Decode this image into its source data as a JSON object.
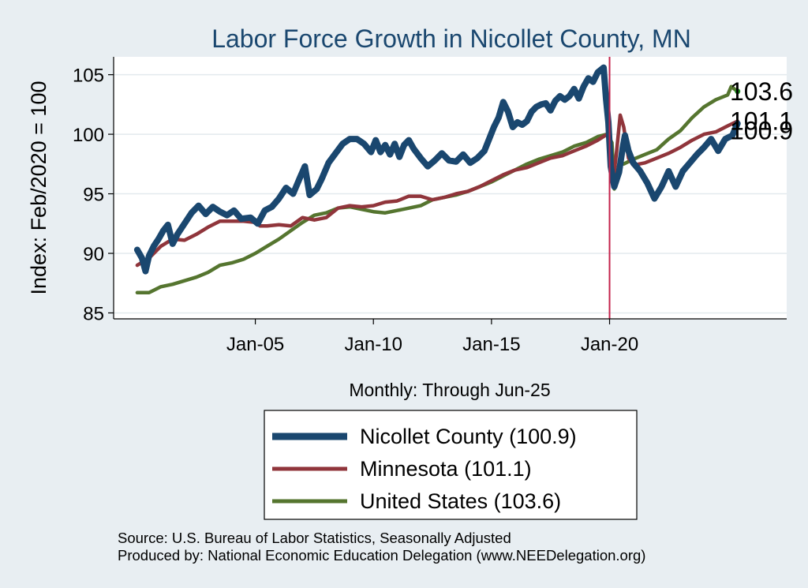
{
  "chart_data": {
    "type": "line",
    "title": "Labor Force Growth in Nicollet  County, MN",
    "xlabel": "Monthly: Through Jun-25",
    "ylabel": "Index: Feb/2020 = 100",
    "ylim": [
      84.5,
      106.5
    ],
    "xlim": [
      1999.0,
      2027.5
    ],
    "y_ticks": [
      85,
      90,
      95,
      100,
      105
    ],
    "x_ticks": [
      {
        "v": 2005.0,
        "label": "Jan-05"
      },
      {
        "v": 2010.0,
        "label": "Jan-10"
      },
      {
        "v": 2015.0,
        "label": "Jan-15"
      },
      {
        "v": 2020.0,
        "label": "Jan-20"
      }
    ],
    "vline": 2020.0,
    "grid": true,
    "legend_position": "bottom",
    "series": [
      {
        "name": "Nicollet  County",
        "legend": "Nicollet  County (100.9)",
        "end_value": "100.9",
        "color": "#1a476f",
        "width": 8,
        "points": [
          [
            2000.0,
            90.3
          ],
          [
            2000.2,
            89.6
          ],
          [
            2000.35,
            88.5
          ],
          [
            2000.5,
            89.8
          ],
          [
            2000.7,
            90.6
          ],
          [
            2000.9,
            91.2
          ],
          [
            2001.1,
            91.9
          ],
          [
            2001.3,
            92.4
          ],
          [
            2001.5,
            90.8
          ],
          [
            2001.7,
            91.6
          ],
          [
            2002.0,
            92.5
          ],
          [
            2002.3,
            93.4
          ],
          [
            2002.6,
            94.0
          ],
          [
            2002.9,
            93.3
          ],
          [
            2003.2,
            93.9
          ],
          [
            2003.5,
            93.5
          ],
          [
            2003.8,
            93.2
          ],
          [
            2004.1,
            93.6
          ],
          [
            2004.4,
            92.9
          ],
          [
            2004.8,
            93.0
          ],
          [
            2005.1,
            92.5
          ],
          [
            2005.4,
            93.6
          ],
          [
            2005.7,
            93.9
          ],
          [
            2006.0,
            94.6
          ],
          [
            2006.3,
            95.5
          ],
          [
            2006.6,
            95.0
          ],
          [
            2006.9,
            96.4
          ],
          [
            2007.1,
            97.3
          ],
          [
            2007.3,
            94.9
          ],
          [
            2007.6,
            95.4
          ],
          [
            2007.8,
            96.2
          ],
          [
            2008.1,
            97.6
          ],
          [
            2008.4,
            98.4
          ],
          [
            2008.7,
            99.2
          ],
          [
            2009.0,
            99.6
          ],
          [
            2009.3,
            99.6
          ],
          [
            2009.6,
            99.2
          ],
          [
            2009.9,
            98.5
          ],
          [
            2010.1,
            99.5
          ],
          [
            2010.3,
            98.5
          ],
          [
            2010.5,
            99.1
          ],
          [
            2010.7,
            98.3
          ],
          [
            2010.9,
            99.2
          ],
          [
            2011.1,
            98.1
          ],
          [
            2011.3,
            99.1
          ],
          [
            2011.5,
            99.5
          ],
          [
            2011.7,
            98.8
          ],
          [
            2012.0,
            98.0
          ],
          [
            2012.3,
            97.3
          ],
          [
            2012.6,
            97.8
          ],
          [
            2012.9,
            98.4
          ],
          [
            2013.2,
            97.8
          ],
          [
            2013.5,
            97.7
          ],
          [
            2013.8,
            98.3
          ],
          [
            2014.1,
            97.6
          ],
          [
            2014.4,
            98.0
          ],
          [
            2014.7,
            98.6
          ],
          [
            2014.9,
            99.6
          ],
          [
            2015.1,
            100.6
          ],
          [
            2015.3,
            101.4
          ],
          [
            2015.5,
            102.7
          ],
          [
            2015.7,
            101.9
          ],
          [
            2015.9,
            100.6
          ],
          [
            2016.1,
            101.0
          ],
          [
            2016.3,
            100.8
          ],
          [
            2016.5,
            101.1
          ],
          [
            2016.7,
            101.9
          ],
          [
            2016.9,
            102.3
          ],
          [
            2017.1,
            102.5
          ],
          [
            2017.3,
            102.6
          ],
          [
            2017.5,
            102.0
          ],
          [
            2017.7,
            102.8
          ],
          [
            2017.9,
            103.2
          ],
          [
            2018.1,
            102.9
          ],
          [
            2018.3,
            103.2
          ],
          [
            2018.5,
            103.8
          ],
          [
            2018.7,
            103.0
          ],
          [
            2018.9,
            104.0
          ],
          [
            2019.1,
            104.7
          ],
          [
            2019.3,
            104.4
          ],
          [
            2019.5,
            105.2
          ],
          [
            2019.75,
            105.6
          ],
          [
            2019.85,
            103.0
          ],
          [
            2019.95,
            101.0
          ],
          [
            2020.05,
            97.3
          ],
          [
            2020.2,
            95.6
          ],
          [
            2020.4,
            96.8
          ],
          [
            2020.55,
            98.8
          ],
          [
            2020.65,
            99.9
          ],
          [
            2020.8,
            98.6
          ],
          [
            2021.0,
            97.6
          ],
          [
            2021.3,
            96.9
          ],
          [
            2021.6,
            95.9
          ],
          [
            2021.9,
            94.6
          ],
          [
            2022.2,
            95.6
          ],
          [
            2022.5,
            96.9
          ],
          [
            2022.8,
            95.6
          ],
          [
            2023.1,
            96.9
          ],
          [
            2023.4,
            97.6
          ],
          [
            2023.7,
            98.3
          ],
          [
            2024.0,
            98.9
          ],
          [
            2024.3,
            99.6
          ],
          [
            2024.6,
            98.6
          ],
          [
            2024.9,
            99.6
          ],
          [
            2025.2,
            99.9
          ],
          [
            2025.42,
            100.9
          ]
        ]
      },
      {
        "name": "Minnesota",
        "legend": "Minnesota (101.1)",
        "end_value": "101.1",
        "color": "#90353b",
        "width": 4.5,
        "points": [
          [
            2000.0,
            89.0
          ],
          [
            2000.5,
            89.6
          ],
          [
            2001.0,
            90.6
          ],
          [
            2001.5,
            91.2
          ],
          [
            2002.0,
            91.1
          ],
          [
            2002.5,
            91.6
          ],
          [
            2003.0,
            92.2
          ],
          [
            2003.5,
            92.7
          ],
          [
            2004.0,
            92.7
          ],
          [
            2004.5,
            92.7
          ],
          [
            2005.0,
            92.6
          ],
          [
            2005.2,
            92.3
          ],
          [
            2005.5,
            92.3
          ],
          [
            2006.0,
            92.4
          ],
          [
            2006.5,
            92.3
          ],
          [
            2007.0,
            93.0
          ],
          [
            2007.5,
            92.8
          ],
          [
            2008.0,
            93.0
          ],
          [
            2008.5,
            93.8
          ],
          [
            2009.0,
            94.0
          ],
          [
            2009.5,
            93.9
          ],
          [
            2010.0,
            94.0
          ],
          [
            2010.5,
            94.3
          ],
          [
            2011.0,
            94.4
          ],
          [
            2011.5,
            94.8
          ],
          [
            2012.0,
            94.8
          ],
          [
            2012.5,
            94.5
          ],
          [
            2013.0,
            94.7
          ],
          [
            2013.5,
            95.0
          ],
          [
            2014.0,
            95.2
          ],
          [
            2014.5,
            95.6
          ],
          [
            2015.0,
            96.1
          ],
          [
            2015.5,
            96.6
          ],
          [
            2016.0,
            97.0
          ],
          [
            2016.5,
            97.2
          ],
          [
            2017.0,
            97.6
          ],
          [
            2017.5,
            98.0
          ],
          [
            2018.0,
            98.2
          ],
          [
            2018.5,
            98.6
          ],
          [
            2019.0,
            99.0
          ],
          [
            2019.5,
            99.5
          ],
          [
            2019.9,
            100.0
          ],
          [
            2020.0,
            99.8
          ],
          [
            2020.15,
            96.0
          ],
          [
            2020.3,
            98.6
          ],
          [
            2020.45,
            101.6
          ],
          [
            2020.6,
            100.6
          ],
          [
            2020.8,
            98.0
          ],
          [
            2021.0,
            97.4
          ],
          [
            2021.5,
            97.6
          ],
          [
            2022.0,
            98.0
          ],
          [
            2022.5,
            98.4
          ],
          [
            2023.0,
            98.9
          ],
          [
            2023.5,
            99.5
          ],
          [
            2024.0,
            100.0
          ],
          [
            2024.5,
            100.2
          ],
          [
            2025.0,
            100.7
          ],
          [
            2025.42,
            101.1
          ]
        ]
      },
      {
        "name": "United States",
        "legend": "United States (103.6)",
        "end_value": "103.6",
        "color": "#55752f",
        "width": 4.5,
        "points": [
          [
            2000.0,
            86.7
          ],
          [
            2000.5,
            86.7
          ],
          [
            2001.0,
            87.2
          ],
          [
            2001.5,
            87.4
          ],
          [
            2002.0,
            87.7
          ],
          [
            2002.5,
            88.0
          ],
          [
            2003.0,
            88.4
          ],
          [
            2003.5,
            89.0
          ],
          [
            2004.0,
            89.2
          ],
          [
            2004.5,
            89.5
          ],
          [
            2005.0,
            90.0
          ],
          [
            2005.5,
            90.6
          ],
          [
            2006.0,
            91.2
          ],
          [
            2006.5,
            91.9
          ],
          [
            2007.0,
            92.6
          ],
          [
            2007.5,
            93.2
          ],
          [
            2008.0,
            93.4
          ],
          [
            2008.5,
            93.8
          ],
          [
            2009.0,
            93.9
          ],
          [
            2009.5,
            93.7
          ],
          [
            2010.0,
            93.5
          ],
          [
            2010.5,
            93.4
          ],
          [
            2011.0,
            93.6
          ],
          [
            2011.5,
            93.8
          ],
          [
            2012.0,
            94.0
          ],
          [
            2012.5,
            94.5
          ],
          [
            2013.0,
            94.7
          ],
          [
            2013.5,
            94.9
          ],
          [
            2014.0,
            95.2
          ],
          [
            2014.5,
            95.6
          ],
          [
            2015.0,
            96.0
          ],
          [
            2015.5,
            96.5
          ],
          [
            2016.0,
            97.0
          ],
          [
            2016.5,
            97.5
          ],
          [
            2017.0,
            97.9
          ],
          [
            2017.5,
            98.2
          ],
          [
            2018.0,
            98.5
          ],
          [
            2018.5,
            99.0
          ],
          [
            2019.0,
            99.3
          ],
          [
            2019.5,
            99.8
          ],
          [
            2019.9,
            100.0
          ],
          [
            2020.1,
            99.3
          ],
          [
            2020.2,
            95.4
          ],
          [
            2020.4,
            97.5
          ],
          [
            2020.6,
            97.5
          ],
          [
            2021.0,
            97.9
          ],
          [
            2021.5,
            98.3
          ],
          [
            2022.0,
            98.7
          ],
          [
            2022.5,
            99.6
          ],
          [
            2023.0,
            100.3
          ],
          [
            2023.5,
            101.4
          ],
          [
            2024.0,
            102.3
          ],
          [
            2024.5,
            102.9
          ],
          [
            2025.0,
            103.3
          ],
          [
            2025.15,
            104.0
          ],
          [
            2025.42,
            103.6
          ]
        ]
      }
    ],
    "end_labels": [
      {
        "text": "103.6",
        "y": 103.6
      },
      {
        "text": "101.1",
        "y": 101.1
      },
      {
        "text": "100.9",
        "y": 100.3
      }
    ]
  },
  "footer": {
    "source": "Source: U.S. Bureau of Labor Statistics, Seasonally Adjusted",
    "produced": "Produced by: National Economic Education Delegation (www.NEEDelegation.org)"
  }
}
